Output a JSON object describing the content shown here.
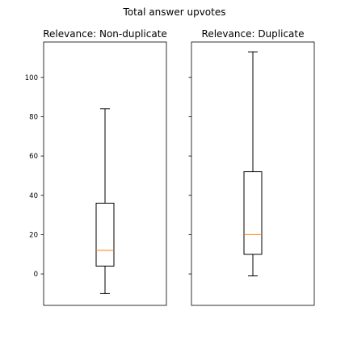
{
  "chart_data": {
    "type": "boxplot",
    "title": "Total answer upvotes",
    "ylim": [
      -16,
      118
    ],
    "yticks": [
      0,
      20,
      40,
      60,
      80,
      100
    ],
    "grid": false,
    "panels": [
      {
        "title": "Relevance: Non-duplicate",
        "box": {
          "whisker_low": -10,
          "q1": 4,
          "median": 12,
          "q3": 36,
          "whisker_high": 84
        },
        "show_ytick_labels": true
      },
      {
        "title": "Relevance: Duplicate",
        "box": {
          "whisker_low": -1,
          "q1": 10,
          "median": 20,
          "q3": 52,
          "whisker_high": 113
        },
        "show_ytick_labels": false
      }
    ],
    "colors": {
      "box": "#000000",
      "median": "#ff7f0e",
      "axes": "#000000"
    }
  }
}
